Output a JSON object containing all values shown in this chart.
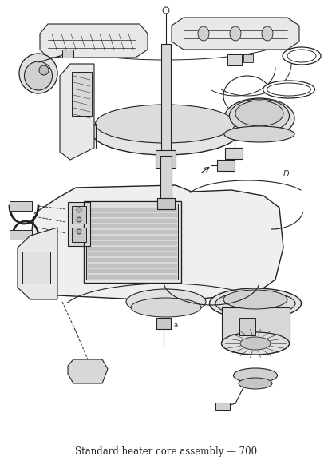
{
  "title": "Standard heater core assembly — 700",
  "bg_color": "#ffffff",
  "lc": "#222222",
  "figsize": [
    4.16,
    5.81
  ],
  "dpi": 100,
  "title_fontsize": 8.5
}
